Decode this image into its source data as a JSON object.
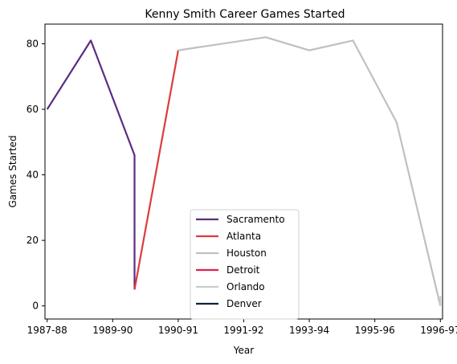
{
  "chart_data": {
    "type": "line",
    "title": "Kenny Smith Career Games Started",
    "xlabel": "Year",
    "ylabel": "Games Started",
    "x_ticks": [
      "1987-88",
      "1989-90",
      "1990-91",
      "1991-92",
      "1993-94",
      "1995-96",
      "1996-97"
    ],
    "xlim": [
      -0.05,
      9.05
    ],
    "ylim": [
      -4,
      86
    ],
    "y_ticks": [
      0,
      20,
      40,
      60,
      80
    ],
    "grid": false,
    "legend_position": "lower-center",
    "series": [
      {
        "name": "Sacramento",
        "color": "#5a2d81",
        "points": [
          [
            0,
            60
          ],
          [
            1,
            81
          ],
          [
            2,
            46
          ],
          [
            2,
            5
          ]
        ]
      },
      {
        "name": "Atlanta",
        "color": "#e03a3e",
        "points": [
          [
            2,
            5
          ],
          [
            3,
            78
          ]
        ]
      },
      {
        "name": "Houston",
        "color": "#bec0c2",
        "points": [
          [
            3,
            78
          ],
          [
            5,
            82
          ],
          [
            6,
            78
          ],
          [
            7,
            81
          ],
          [
            8,
            56
          ],
          [
            9,
            0
          ]
        ]
      },
      {
        "name": "Detroit",
        "color": "#dc2150",
        "points": []
      },
      {
        "name": "Orlando",
        "color": "#c4ced4",
        "points": [
          [
            9,
            3
          ],
          [
            9,
            0
          ]
        ]
      },
      {
        "name": "Denver",
        "color": "#0e2240",
        "points": []
      }
    ]
  }
}
